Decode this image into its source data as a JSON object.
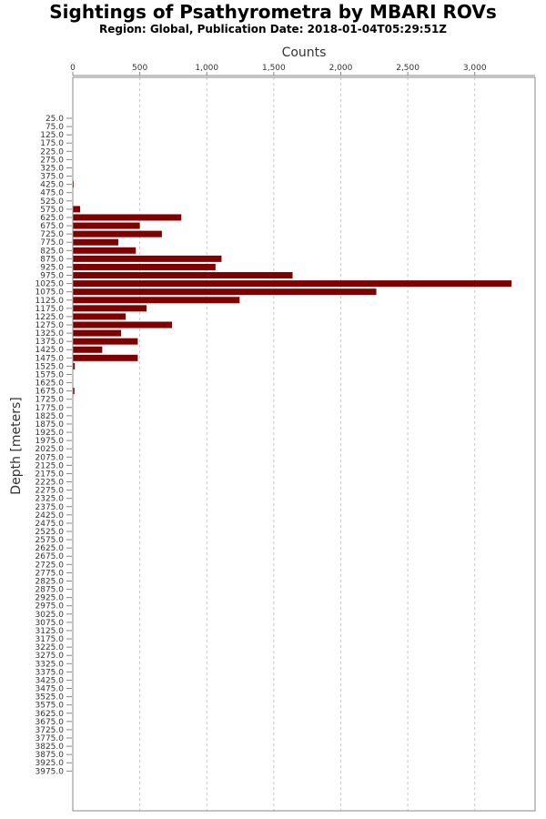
{
  "chart_data": {
    "type": "bar",
    "orientation": "horizontal",
    "title": "Sightings of Psathyrometra by MBARI ROVs",
    "subtitle": "Region: Global, Publication Date: 2018-01-04T05:29:51Z",
    "xlabel": "Counts",
    "ylabel": "Depth [meters]",
    "xlim": [
      0,
      3450
    ],
    "xticks": [
      0,
      500,
      1000,
      1500,
      2000,
      2500,
      3000
    ],
    "xtick_labels": [
      "0",
      "500",
      "1,000",
      "1,500",
      "2,000",
      "2,500",
      "3,000"
    ],
    "grid": true,
    "bar_color": "#7f0000",
    "categories": [
      "25.0",
      "75.0",
      "125.0",
      "175.0",
      "225.0",
      "275.0",
      "325.0",
      "375.0",
      "425.0",
      "475.0",
      "525.0",
      "575.0",
      "625.0",
      "675.0",
      "725.0",
      "775.0",
      "825.0",
      "875.0",
      "925.0",
      "975.0",
      "1025.0",
      "1075.0",
      "1125.0",
      "1175.0",
      "1225.0",
      "1275.0",
      "1325.0",
      "1375.0",
      "1425.0",
      "1475.0",
      "1525.0",
      "1575.0",
      "1625.0",
      "1675.0",
      "1725.0",
      "1775.0",
      "1825.0",
      "1875.0",
      "1925.0",
      "1975.0",
      "2025.0",
      "2075.0",
      "2125.0",
      "2175.0",
      "2225.0",
      "2275.0",
      "2325.0",
      "2375.0",
      "2425.0",
      "2475.0",
      "2525.0",
      "2575.0",
      "2625.0",
      "2675.0",
      "2725.0",
      "2775.0",
      "2825.0",
      "2875.0",
      "2925.0",
      "2975.0",
      "3025.0",
      "3075.0",
      "3125.0",
      "3175.0",
      "3225.0",
      "3275.0",
      "3325.0",
      "3375.0",
      "3425.0",
      "3475.0",
      "3525.0",
      "3575.0",
      "3625.0",
      "3675.0",
      "3725.0",
      "3775.0",
      "3825.0",
      "3875.0",
      "3925.0",
      "3975.0"
    ],
    "values": [
      0,
      0,
      0,
      0,
      0,
      0,
      0,
      0,
      2,
      0,
      0,
      55,
      810,
      500,
      665,
      340,
      470,
      1110,
      1065,
      1640,
      3275,
      2265,
      1245,
      550,
      395,
      740,
      360,
      485,
      220,
      485,
      15,
      0,
      0,
      12,
      0,
      0,
      0,
      0,
      0,
      0,
      0,
      0,
      0,
      0,
      0,
      0,
      0,
      0,
      0,
      0,
      0,
      0,
      0,
      0,
      0,
      0,
      0,
      0,
      0,
      0,
      0,
      0,
      0,
      0,
      0,
      0,
      0,
      0,
      0,
      0,
      0,
      0,
      0,
      0,
      0,
      0,
      0,
      0,
      0,
      0
    ]
  }
}
